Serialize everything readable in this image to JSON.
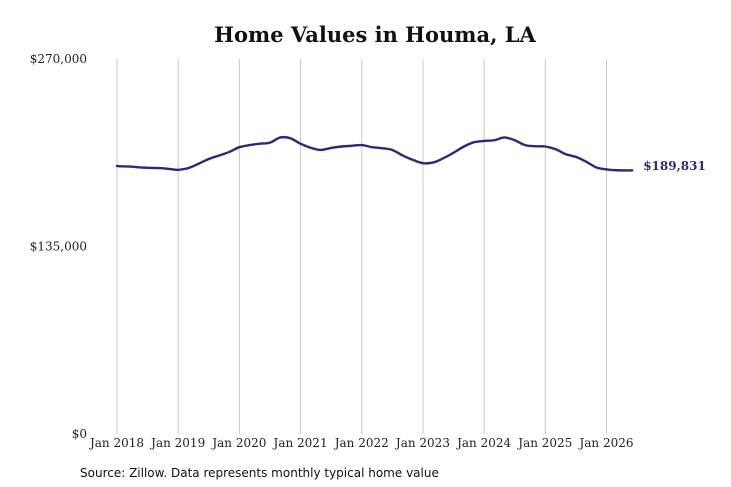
{
  "chart_data": {
    "type": "line",
    "title": "Home Values in Houma, LA",
    "xlabel": "",
    "ylabel": "",
    "ylim": [
      0,
      270000
    ],
    "yticks": [
      {
        "value": 0,
        "label": "$0"
      },
      {
        "value": 135000,
        "label": "$135,000"
      },
      {
        "value": 270000,
        "label": "$270,000"
      }
    ],
    "xticks": [
      {
        "value": 2018,
        "label": "Jan 2018"
      },
      {
        "value": 2019,
        "label": "Jan 2019"
      },
      {
        "value": 2020,
        "label": "Jan 2020"
      },
      {
        "value": 2021,
        "label": "Jan 2021"
      },
      {
        "value": 2022,
        "label": "Jan 2022"
      },
      {
        "value": 2023,
        "label": "Jan 2023"
      },
      {
        "value": 2024,
        "label": "Jan 2024"
      },
      {
        "value": 2025,
        "label": "Jan 2025"
      },
      {
        "value": 2026,
        "label": "Jan 2026"
      }
    ],
    "xlim": [
      2018,
      2026.45
    ],
    "grid": "vertical",
    "line_color": "#2b2a78",
    "end_label": "$189,831",
    "series": [
      {
        "points": [
          [
            2018.0,
            193000
          ],
          [
            2018.08,
            192700
          ],
          [
            2018.25,
            192500
          ],
          [
            2018.42,
            191800
          ],
          [
            2018.58,
            191600
          ],
          [
            2018.75,
            191300
          ],
          [
            2018.92,
            190500
          ],
          [
            2019.0,
            190200
          ],
          [
            2019.17,
            191500
          ],
          [
            2019.33,
            194500
          ],
          [
            2019.5,
            198000
          ],
          [
            2019.67,
            200500
          ],
          [
            2019.83,
            203000
          ],
          [
            2020.0,
            206500
          ],
          [
            2020.17,
            208000
          ],
          [
            2020.33,
            209000
          ],
          [
            2020.5,
            209800
          ],
          [
            2020.67,
            213500
          ],
          [
            2020.83,
            213000
          ],
          [
            2021.0,
            209000
          ],
          [
            2021.17,
            206000
          ],
          [
            2021.33,
            204500
          ],
          [
            2021.5,
            206000
          ],
          [
            2021.67,
            207000
          ],
          [
            2021.83,
            207500
          ],
          [
            2022.0,
            208000
          ],
          [
            2022.17,
            206500
          ],
          [
            2022.33,
            205800
          ],
          [
            2022.5,
            204500
          ],
          [
            2022.67,
            200500
          ],
          [
            2022.83,
            197500
          ],
          [
            2023.0,
            195000
          ],
          [
            2023.17,
            195500
          ],
          [
            2023.33,
            198500
          ],
          [
            2023.5,
            202500
          ],
          [
            2023.67,
            207000
          ],
          [
            2023.83,
            210000
          ],
          [
            2024.0,
            211000
          ],
          [
            2024.17,
            211500
          ],
          [
            2024.33,
            213500
          ],
          [
            2024.5,
            211500
          ],
          [
            2024.67,
            208000
          ],
          [
            2024.83,
            207200
          ],
          [
            2025.0,
            207000
          ],
          [
            2025.17,
            205000
          ],
          [
            2025.33,
            201500
          ],
          [
            2025.5,
            199500
          ],
          [
            2025.67,
            196000
          ],
          [
            2025.83,
            192000
          ],
          [
            2026.0,
            190500
          ],
          [
            2026.17,
            189900
          ],
          [
            2026.33,
            189800
          ],
          [
            2026.42,
            189831
          ]
        ]
      }
    ]
  },
  "footer": {
    "source": "Source: Zillow. Data represents monthly typical home value"
  }
}
